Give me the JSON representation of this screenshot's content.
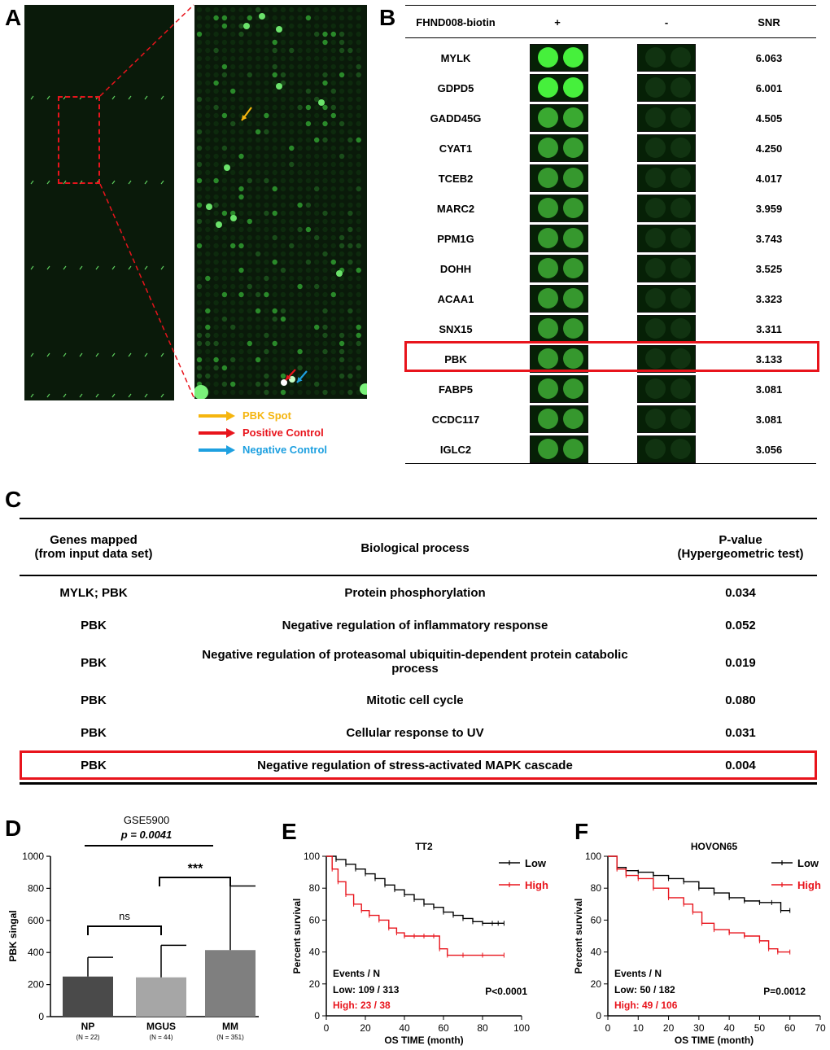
{
  "panel_labels": {
    "a": "A",
    "b": "B",
    "c": "C",
    "d": "D",
    "e": "E",
    "f": "F"
  },
  "panel_a": {
    "legend": [
      {
        "label": "PBK Spot",
        "color": "#f5b50f"
      },
      {
        "label": "Positive Control",
        "color": "#e8141c"
      },
      {
        "label": "Negative Control",
        "color": "#1ea0e0"
      }
    ]
  },
  "panel_b": {
    "header": {
      "col1": "FHND008-biotin",
      "col2": "+",
      "col3": "-",
      "col4": "SNR"
    },
    "rows": [
      {
        "gene": "MYLK",
        "snr": "6.063"
      },
      {
        "gene": "GDPD5",
        "snr": "6.001"
      },
      {
        "gene": "GADD45G",
        "snr": "4.505"
      },
      {
        "gene": "CYAT1",
        "snr": "4.250"
      },
      {
        "gene": "TCEB2",
        "snr": "4.017"
      },
      {
        "gene": "MARC2",
        "snr": "3.959"
      },
      {
        "gene": "PPM1G",
        "snr": "3.743"
      },
      {
        "gene": "DOHH",
        "snr": "3.525"
      },
      {
        "gene": "ACAA1",
        "snr": "3.323"
      },
      {
        "gene": "SNX15",
        "snr": "3.311"
      },
      {
        "gene": "PBK",
        "snr": "3.133"
      },
      {
        "gene": "FABP5",
        "snr": "3.081"
      },
      {
        "gene": "CCDC117",
        "snr": "3.081"
      },
      {
        "gene": "IGLC2",
        "snr": "3.056"
      }
    ],
    "highlight_color": "#e8141c"
  },
  "panel_c": {
    "header": {
      "genes_l1": "Genes mapped",
      "genes_l2": "(from input data set)",
      "process": "Biological process",
      "p_l1": "P-value",
      "p_l2": "(Hypergeometric test)"
    },
    "rows": [
      {
        "genes": "MYLK; PBK",
        "process": "Protein phosphorylation",
        "process2": "",
        "p": "0.034"
      },
      {
        "genes": "PBK",
        "process": "Negative regulation of inflammatory response",
        "process2": "",
        "p": "0.052"
      },
      {
        "genes": "PBK",
        "process": "Negative regulation of proteasomal ubiquitin-dependent protein catabolic",
        "process2": "process",
        "p": "0.019"
      },
      {
        "genes": "PBK",
        "process": "Mitotic cell cycle",
        "process2": "",
        "p": "0.080"
      },
      {
        "genes": "PBK",
        "process": "Cellular response to UV",
        "process2": "",
        "p": "0.031"
      },
      {
        "genes": "PBK",
        "process": "Negative regulation of stress-activated MAPK cascade",
        "process2": "",
        "p": "0.004"
      }
    ]
  },
  "chart_data": [
    {
      "type": "bar",
      "title": "GSE5900",
      "subtitle": "p = 0.0041",
      "ylabel": "PBK singal",
      "ylim": [
        0,
        1000
      ],
      "yticks": [
        0,
        200,
        400,
        600,
        800,
        1000
      ],
      "categories": [
        "NP",
        "MGUS",
        "MM"
      ],
      "n_labels": [
        "(N = 22)",
        "(N = 44)",
        "(N = 351)"
      ],
      "values": [
        250,
        245,
        415
      ],
      "errors": [
        120,
        200,
        400
      ],
      "colors": [
        "#4a4a4a",
        "#a6a6a6",
        "#7f7f7f"
      ],
      "annotations": {
        "ns": "ns",
        "stars": "***"
      }
    },
    {
      "type": "line",
      "title": "TT2",
      "xlabel": "OS TIME (month)",
      "ylabel": "Percent survival",
      "xlim": [
        0,
        100
      ],
      "ylim": [
        0,
        100
      ],
      "xticks": [
        0,
        20,
        40,
        60,
        80,
        100
      ],
      "yticks": [
        0,
        20,
        40,
        60,
        80,
        100
      ],
      "legend_position": "top-right",
      "series": [
        {
          "name": "Low",
          "color": "#000000",
          "x": [
            0,
            5,
            10,
            15,
            20,
            25,
            30,
            35,
            40,
            45,
            50,
            55,
            60,
            65,
            70,
            75,
            80,
            85,
            88,
            91
          ],
          "y": [
            100,
            98,
            95,
            92,
            89,
            86,
            82,
            79,
            76,
            73,
            70,
            68,
            65,
            63,
            61,
            59,
            58,
            58,
            58,
            58
          ]
        },
        {
          "name": "High",
          "color": "#e8141c",
          "x": [
            0,
            3,
            6,
            10,
            14,
            18,
            22,
            27,
            32,
            36,
            40,
            45,
            50,
            55,
            58,
            62,
            70,
            80,
            91
          ],
          "y": [
            100,
            92,
            84,
            76,
            70,
            66,
            63,
            60,
            55,
            52,
            50,
            50,
            50,
            50,
            42,
            38,
            38,
            38,
            38
          ]
        }
      ],
      "events_title": "Events / N",
      "events_low": "Low: 109 / 313",
      "events_high": "High: 23 / 38",
      "pvalue": "P<0.0001"
    },
    {
      "type": "line",
      "title": "HOVON65",
      "xlabel": "OS TIME (month)",
      "ylabel": "Percent survival",
      "xlim": [
        0,
        70
      ],
      "ylim": [
        0,
        100
      ],
      "xticks": [
        0,
        10,
        20,
        30,
        40,
        50,
        60,
        70
      ],
      "yticks": [
        0,
        20,
        40,
        60,
        80,
        100
      ],
      "legend_position": "top-right",
      "series": [
        {
          "name": "Low",
          "color": "#000000",
          "x": [
            0,
            3,
            6,
            10,
            15,
            20,
            25,
            30,
            35,
            40,
            45,
            50,
            54,
            57,
            60
          ],
          "y": [
            100,
            93,
            91,
            90,
            88,
            86,
            84,
            80,
            77,
            74,
            72,
            71,
            71,
            66,
            66
          ]
        },
        {
          "name": "High",
          "color": "#e8141c",
          "x": [
            0,
            3,
            6,
            10,
            15,
            20,
            25,
            28,
            31,
            35,
            40,
            45,
            50,
            53,
            56,
            60
          ],
          "y": [
            100,
            92,
            88,
            86,
            80,
            74,
            70,
            65,
            58,
            54,
            52,
            50,
            47,
            42,
            40,
            40
          ]
        }
      ],
      "events_title": "Events / N",
      "events_low": "Low: 50 / 182",
      "events_high": "High: 49 / 106",
      "pvalue": "P=0.0012"
    }
  ]
}
